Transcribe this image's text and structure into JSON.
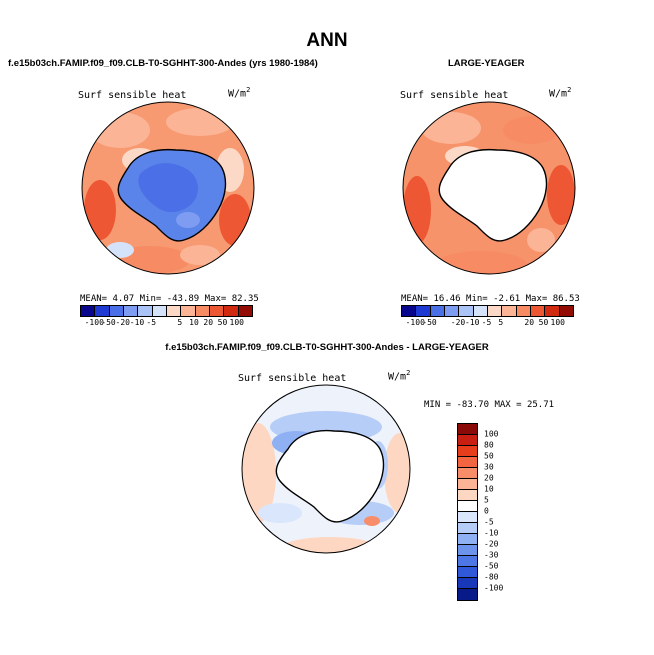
{
  "title": "ANN",
  "panels": {
    "model": {
      "title": "f.e15b03ch.FAMIP.f09_f09.CLB-T0-SGHHT-300-Andes (yrs 1980-1984)",
      "variable": "Surf sensible heat",
      "units": "W/m",
      "units_sup": "2",
      "stats": "MEAN=   4.07  Min= -43.89  Max=  82.35"
    },
    "obs": {
      "title": "LARGE-YEAGER",
      "variable": "Surf sensible heat",
      "units": "W/m",
      "units_sup": "2",
      "stats": "MEAN=  16.46  Min=  -2.61  Max=  86.53"
    },
    "diff": {
      "title": "f.e15b03ch.FAMIP.f09_f09.CLB-T0-SGHHT-300-Andes - LARGE-YEAGER",
      "variable": "Surf sensible heat",
      "units": "W/m",
      "units_sup": "2",
      "stats": "MIN = -83.70 MAX =  25.71"
    }
  },
  "colorbar_main": {
    "colors": [
      "#08068c",
      "#1e3ad2",
      "#4a6fe6",
      "#7e9df2",
      "#abc4f8",
      "#d5e3fa",
      "#fcd9c6",
      "#fbb596",
      "#f78b64",
      "#ee5733",
      "#d02a10",
      "#930c04"
    ],
    "ticks": [
      "-100",
      "-50",
      "-20",
      "-10",
      "-5",
      "5",
      "10",
      "20",
      "50",
      "100"
    ]
  },
  "colorbar_main2": {
    "ticks": [
      "-100",
      "-50",
      "-20",
      "-10",
      "-5",
      "5",
      "20",
      "50",
      "100"
    ]
  },
  "colorbar_diff": {
    "colors": [
      "#8a0a08",
      "#c81f12",
      "#e63d1c",
      "#f36440",
      "#f88d6a",
      "#fbb596",
      "#fdd7c2",
      "#ffffff",
      "#d9e6fb",
      "#b5cdf7",
      "#8fb0f2",
      "#6d94ec",
      "#4d77e4",
      "#2f59d8",
      "#1738b8",
      "#071a88"
    ],
    "ticks": [
      "100",
      "80",
      "50",
      "30",
      "20",
      "10",
      "5",
      "0",
      "-5",
      "-10",
      "-20",
      "-30",
      "-50",
      "-80",
      "-100"
    ]
  },
  "map_fills": {
    "ocean_model": "#f79a72",
    "land_model": "#5b84ea",
    "ocean_obs": "#f6936a",
    "land_obs": "#ffffff",
    "ocean_diff": "#eef2fb",
    "land_diff": "#ffffff"
  }
}
